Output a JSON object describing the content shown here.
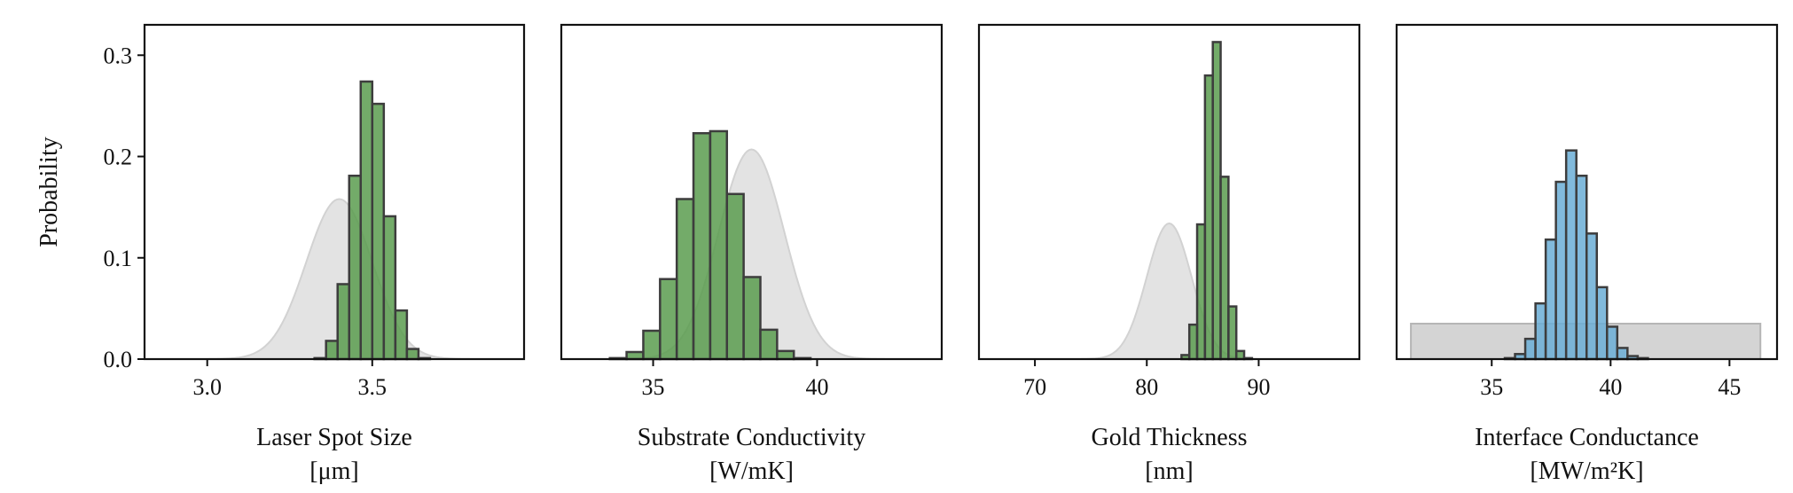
{
  "chart_data": [
    {
      "type": "bar",
      "title": "",
      "xlabel": "Laser Spot Size",
      "xunit": "[μm]",
      "ylabel": "Probability",
      "xlim": [
        2.81,
        3.96
      ],
      "ylim": [
        0,
        0.33
      ],
      "xticks": [
        "3.0",
        "3.5"
      ],
      "xtick_values": [
        3.0,
        3.5
      ],
      "yticks": [
        "0.0",
        "0.1",
        "0.2",
        "0.3"
      ],
      "ytick_values": [
        0.0,
        0.1,
        0.2,
        0.3
      ],
      "prior": {
        "kind": "gaussian",
        "mean": 3.4,
        "sd": 0.1,
        "peak": 0.158,
        "range": [
          2.86,
          3.94
        ]
      },
      "histogram": {
        "color": "#5b9c4f",
        "bins": [
          {
            "x0": 3.325,
            "x1": 3.36,
            "p": 0.001
          },
          {
            "x0": 3.36,
            "x1": 3.395,
            "p": 0.018
          },
          {
            "x0": 3.395,
            "x1": 3.43,
            "p": 0.074
          },
          {
            "x0": 3.43,
            "x1": 3.465,
            "p": 0.181
          },
          {
            "x0": 3.465,
            "x1": 3.5,
            "p": 0.274
          },
          {
            "x0": 3.5,
            "x1": 3.535,
            "p": 0.252
          },
          {
            "x0": 3.535,
            "x1": 3.57,
            "p": 0.141
          },
          {
            "x0": 3.57,
            "x1": 3.605,
            "p": 0.048
          },
          {
            "x0": 3.605,
            "x1": 3.64,
            "p": 0.01
          },
          {
            "x0": 3.64,
            "x1": 3.675,
            "p": 0.001
          }
        ]
      }
    },
    {
      "type": "bar",
      "title": "",
      "xlabel": "Substrate Conductivity",
      "xunit": "[W/mK]",
      "xlim": [
        32.2,
        43.8
      ],
      "ylim": [
        0,
        0.33
      ],
      "xticks": [
        "35",
        "40"
      ],
      "xtick_values": [
        35,
        40
      ],
      "prior": {
        "kind": "gaussian",
        "mean": 38.0,
        "sd": 1.0,
        "peak": 0.207,
        "range": [
          32.8,
          43.2
        ]
      },
      "histogram": {
        "color": "#5b9c4f",
        "bins": [
          {
            "x0": 33.68,
            "x1": 34.19,
            "p": 0.001
          },
          {
            "x0": 34.19,
            "x1": 34.7,
            "p": 0.007
          },
          {
            "x0": 34.7,
            "x1": 35.21,
            "p": 0.028
          },
          {
            "x0": 35.21,
            "x1": 35.72,
            "p": 0.079
          },
          {
            "x0": 35.72,
            "x1": 36.23,
            "p": 0.158
          },
          {
            "x0": 36.23,
            "x1": 36.74,
            "p": 0.223
          },
          {
            "x0": 36.74,
            "x1": 37.25,
            "p": 0.225
          },
          {
            "x0": 37.25,
            "x1": 37.76,
            "p": 0.163
          },
          {
            "x0": 37.76,
            "x1": 38.27,
            "p": 0.081
          },
          {
            "x0": 38.27,
            "x1": 38.78,
            "p": 0.029
          },
          {
            "x0": 38.78,
            "x1": 39.29,
            "p": 0.008
          },
          {
            "x0": 39.29,
            "x1": 39.8,
            "p": 0.001
          }
        ]
      }
    },
    {
      "type": "bar",
      "title": "",
      "xlabel": "Gold Thickness",
      "xunit": "[nm]",
      "xlim": [
        65.0,
        99.0
      ],
      "ylim": [
        0,
        0.33
      ],
      "xticks": [
        "70",
        "80",
        "90"
      ],
      "xtick_values": [
        70,
        80,
        90
      ],
      "prior": {
        "kind": "gaussian",
        "mean": 82.0,
        "sd": 2.0,
        "peak": 0.134,
        "range": [
          66.5,
          97.5
        ]
      },
      "histogram": {
        "color": "#5b9c4f",
        "bins": [
          {
            "x0": 83.1,
            "x1": 83.8,
            "p": 0.004
          },
          {
            "x0": 83.8,
            "x1": 84.5,
            "p": 0.034
          },
          {
            "x0": 84.5,
            "x1": 85.2,
            "p": 0.133
          },
          {
            "x0": 85.2,
            "x1": 85.9,
            "p": 0.28
          },
          {
            "x0": 85.9,
            "x1": 86.6,
            "p": 0.313
          },
          {
            "x0": 86.6,
            "x1": 87.3,
            "p": 0.18
          },
          {
            "x0": 87.3,
            "x1": 88.0,
            "p": 0.052
          },
          {
            "x0": 88.0,
            "x1": 88.7,
            "p": 0.008
          },
          {
            "x0": 88.7,
            "x1": 89.4,
            "p": 0.001
          }
        ]
      }
    },
    {
      "type": "bar",
      "title": "",
      "xlabel": "Interface Conductance",
      "xunit": "[MW/m²K]",
      "xlim": [
        31.0,
        47.0
      ],
      "ylim": [
        0,
        0.33
      ],
      "xticks": [
        "35",
        "40",
        "45"
      ],
      "xtick_values": [
        35,
        40,
        45
      ],
      "prior": {
        "kind": "uniform",
        "range": [
          31.6,
          46.3
        ],
        "height": 0.035
      },
      "histogram": {
        "color": "#6baed6",
        "bins": [
          {
            "x0": 35.55,
            "x1": 35.98,
            "p": 0.001
          },
          {
            "x0": 35.98,
            "x1": 36.41,
            "p": 0.005
          },
          {
            "x0": 36.41,
            "x1": 36.84,
            "p": 0.02
          },
          {
            "x0": 36.84,
            "x1": 37.27,
            "p": 0.055
          },
          {
            "x0": 37.27,
            "x1": 37.7,
            "p": 0.118
          },
          {
            "x0": 37.7,
            "x1": 38.13,
            "p": 0.175
          },
          {
            "x0": 38.13,
            "x1": 38.56,
            "p": 0.206
          },
          {
            "x0": 38.56,
            "x1": 38.99,
            "p": 0.181
          },
          {
            "x0": 38.99,
            "x1": 39.42,
            "p": 0.124
          },
          {
            "x0": 39.42,
            "x1": 39.85,
            "p": 0.071
          },
          {
            "x0": 39.85,
            "x1": 40.28,
            "p": 0.032
          },
          {
            "x0": 40.28,
            "x1": 40.71,
            "p": 0.011
          },
          {
            "x0": 40.71,
            "x1": 41.14,
            "p": 0.003
          },
          {
            "x0": 41.14,
            "x1": 41.57,
            "p": 0.001
          }
        ]
      }
    }
  ]
}
